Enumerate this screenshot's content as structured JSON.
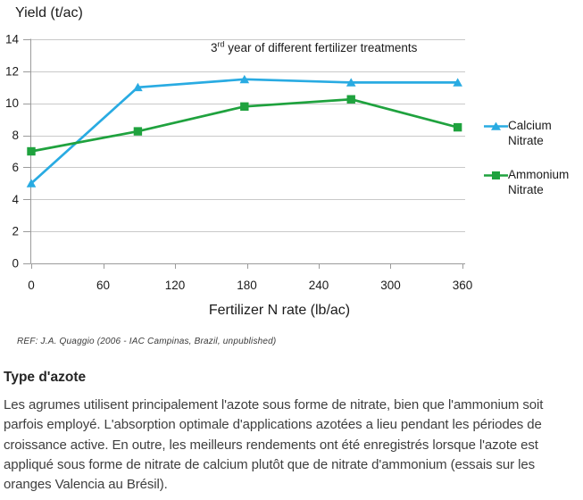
{
  "chart": {
    "y_axis_title": "Yield (t/ac)",
    "title_base": "3",
    "title_sup": "rd",
    "title_rest": " year of different fertilizer treatments",
    "x_axis_title": "Fertilizer N rate (lb/ac)",
    "ref_note": "REF: J.A. Quaggio  (2006 - IAC Campinas, Brazil, unpublished)"
  },
  "chart_data": {
    "type": "line",
    "title": "3rd year of different fertilizer treatments",
    "xlabel": "Fertilizer N rate (lb/ac)",
    "ylabel": "Yield (t/ac)",
    "x": [
      0,
      89,
      178,
      267,
      356
    ],
    "series": [
      {
        "name": "Calcium Nitrate",
        "color": "#29ABE2",
        "marker": "triangle",
        "values": [
          5.0,
          11.0,
          11.5,
          11.3,
          11.3
        ]
      },
      {
        "name": "Ammonium Nitrate",
        "color": "#1FA23E",
        "marker": "square",
        "values": [
          7.0,
          8.25,
          9.8,
          10.25,
          8.5
        ]
      }
    ],
    "xlim": [
      0,
      362
    ],
    "ylim": [
      0,
      14
    ],
    "xticks": [
      0,
      60,
      120,
      180,
      240,
      300,
      360
    ],
    "yticks": [
      0,
      2,
      4,
      6,
      8,
      10,
      12,
      14
    ],
    "grid": "horizontal",
    "legend_position": "right",
    "gridline_color": "#c9c9c9",
    "axis_color": "#9b9b9b",
    "tick_label_color": "#1b1b1b"
  },
  "section": {
    "heading": "Type d'azote",
    "paragraph": "Les agrumes utilisent principalement l'azote sous forme de nitrate, bien que l'ammonium soit parfois employé. L'absorption optimale d'applications azotées a lieu pendant les périodes de croissance active. En outre, les meilleurs rendements ont été enregistrés lorsque l'azote est appliqué sous forme de nitrate de calcium plutôt que de nitrate d'ammonium (essais sur les oranges Valencia au Brésil)."
  }
}
